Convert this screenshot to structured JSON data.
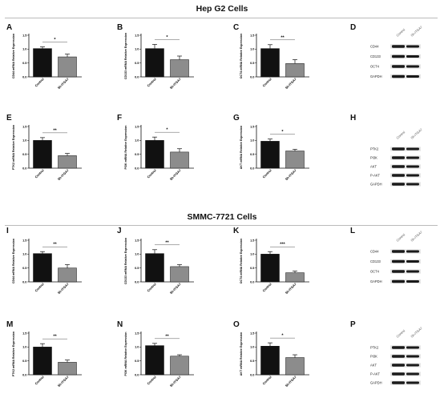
{
  "sections": [
    {
      "title": "Hep G2 Cells"
    },
    {
      "title": "SMMC-7721 Cells"
    }
  ],
  "colors": {
    "control_bar": "#111111",
    "treated_bar": "#8c8c8c"
  },
  "chart_data": [
    {
      "panel": "A",
      "type": "bar",
      "ylabel": "CD44 mRNA Relative Expression",
      "categories": [
        "Control",
        "Sh-ITGA7"
      ],
      "values": [
        1.02,
        0.72
      ],
      "errors": [
        0.06,
        0.1
      ],
      "ylim": [
        0,
        1.5
      ],
      "yticks": [
        "0.0",
        "0.5",
        "1.0",
        "1.5"
      ],
      "significance": "*"
    },
    {
      "panel": "B",
      "type": "bar",
      "ylabel": "CD133 mRNA Relative Expression",
      "categories": [
        "Control",
        "Sh-ITGA7"
      ],
      "values": [
        1.02,
        0.62
      ],
      "errors": [
        0.15,
        0.13
      ],
      "ylim": [
        0,
        1.5
      ],
      "yticks": [
        "0.0",
        "0.5",
        "1.0",
        "1.5"
      ],
      "significance": "*"
    },
    {
      "panel": "C",
      "type": "bar",
      "ylabel": "OCT4 mRNA Relative Expression",
      "categories": [
        "Control",
        "Sh-ITGA7"
      ],
      "values": [
        1.02,
        0.48
      ],
      "errors": [
        0.14,
        0.14
      ],
      "ylim": [
        0,
        1.5
      ],
      "yticks": [
        "0.0",
        "0.5",
        "1.0",
        "1.5"
      ],
      "significance": "**"
    },
    {
      "panel": "E",
      "type": "bar",
      "ylabel": "PTK2 mRNA Relative Expression",
      "categories": [
        "Control",
        "Sh-ITGA7"
      ],
      "values": [
        1.0,
        0.45
      ],
      "errors": [
        0.1,
        0.08
      ],
      "ylim": [
        0,
        1.5
      ],
      "yticks": [
        "0.0",
        "0.5",
        "1.0",
        "1.5"
      ],
      "significance": "**"
    },
    {
      "panel": "F",
      "type": "bar",
      "ylabel": "PI3K mRNA Relative Expression",
      "categories": [
        "Control",
        "Sh-ITGA7"
      ],
      "values": [
        1.0,
        0.58
      ],
      "errors": [
        0.12,
        0.12
      ],
      "ylim": [
        0,
        1.5
      ],
      "yticks": [
        "0.0",
        "0.5",
        "1.0",
        "1.5"
      ],
      "significance": "*"
    },
    {
      "panel": "G",
      "type": "bar",
      "ylabel": "AKT mRNA Relative Expression",
      "categories": [
        "Control",
        "Sh-ITGA7"
      ],
      "values": [
        0.97,
        0.62
      ],
      "errors": [
        0.08,
        0.06
      ],
      "ylim": [
        0,
        1.5
      ],
      "yticks": [
        "0.0",
        "0.5",
        "1.0",
        "1.5"
      ],
      "significance": "*"
    },
    {
      "panel": "I",
      "type": "bar",
      "ylabel": "CD44 mRNA Relative Expression",
      "categories": [
        "Control",
        "Sh-ITGA7"
      ],
      "values": [
        1.02,
        0.5
      ],
      "errors": [
        0.07,
        0.12
      ],
      "ylim": [
        0,
        1.5
      ],
      "yticks": [
        "0.0",
        "0.5",
        "1.0",
        "1.5"
      ],
      "significance": "**"
    },
    {
      "panel": "J",
      "type": "bar",
      "ylabel": "CD133 mRNA Relative Expression",
      "categories": [
        "Control",
        "Sh-ITGA7"
      ],
      "values": [
        1.02,
        0.55
      ],
      "errors": [
        0.14,
        0.07
      ],
      "ylim": [
        0,
        1.5
      ],
      "yticks": [
        "0.0",
        "0.5",
        "1.0",
        "1.5"
      ],
      "significance": "**"
    },
    {
      "panel": "K",
      "type": "bar",
      "ylabel": "OCT4 mRNA Relative Expression",
      "categories": [
        "Control",
        "Sh-ITGA7"
      ],
      "values": [
        1.0,
        0.33
      ],
      "errors": [
        0.09,
        0.06
      ],
      "ylim": [
        0,
        1.5
      ],
      "yticks": [
        "0.0",
        "0.5",
        "1.0",
        "1.5"
      ],
      "significance": "***"
    },
    {
      "panel": "M",
      "type": "bar",
      "ylabel": "PTK2 mRNA Relative Expression",
      "categories": [
        "Control",
        "Sh-ITGA7"
      ],
      "values": [
        1.0,
        0.45
      ],
      "errors": [
        0.12,
        0.08
      ],
      "ylim": [
        0,
        1.5
      ],
      "yticks": [
        "0.0",
        "0.5",
        "1.0",
        "1.5"
      ],
      "significance": "**"
    },
    {
      "panel": "N",
      "type": "bar",
      "ylabel": "PI3K mRNA Relative Expression",
      "categories": [
        "Control",
        "Sh-ITGA7"
      ],
      "values": [
        1.05,
        0.67
      ],
      "errors": [
        0.08,
        0.05
      ],
      "ylim": [
        0,
        1.5
      ],
      "yticks": [
        "0.0",
        "0.5",
        "1.0",
        "1.5"
      ],
      "significance": "**"
    },
    {
      "panel": "O",
      "type": "bar",
      "ylabel": "AKT mRNA Relative Expression",
      "categories": [
        "Control",
        "Sh-ITGA7"
      ],
      "values": [
        1.03,
        0.62
      ],
      "errors": [
        0.12,
        0.1
      ],
      "ylim": [
        0,
        1.5
      ],
      "yticks": [
        "0.0",
        "0.5",
        "1.0",
        "1.5"
      ],
      "significance": "*"
    }
  ],
  "blots": [
    {
      "panel": "D",
      "lanes": [
        "Control",
        "Sh-ITGA7"
      ],
      "rows": [
        "CD44",
        "CD133",
        "OCT4",
        "GAPDH"
      ]
    },
    {
      "panel": "H",
      "lanes": [
        "Control",
        "Sh-ITGA7"
      ],
      "rows": [
        "PTK2",
        "PI3K",
        "AKT",
        "P-AKT",
        "GAPDH"
      ]
    },
    {
      "panel": "L",
      "lanes": [
        "Control",
        "Sh-ITGA7"
      ],
      "rows": [
        "CD44",
        "CD133",
        "OCT4",
        "GAPDH"
      ]
    },
    {
      "panel": "P",
      "lanes": [
        "Control",
        "Sh-ITGA7"
      ],
      "rows": [
        "PTK2",
        "PI3K",
        "AKT",
        "P-AKT",
        "GAPDH"
      ]
    }
  ]
}
